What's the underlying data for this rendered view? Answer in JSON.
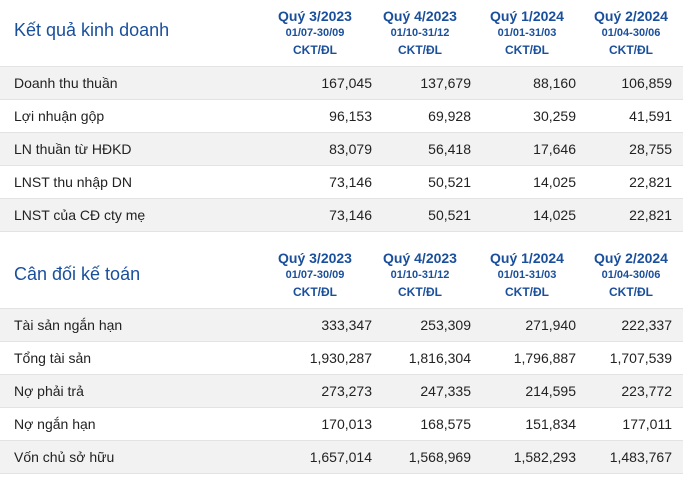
{
  "columns": [
    {
      "quarter": "Quý 3/2023",
      "range": "01/07-30/09",
      "unit": "CKT/ĐL"
    },
    {
      "quarter": "Quý 4/2023",
      "range": "01/10-31/12",
      "unit": "CKT/ĐL"
    },
    {
      "quarter": "Quý 1/2024",
      "range": "01/01-31/03",
      "unit": "CKT/ĐL"
    },
    {
      "quarter": "Quý 2/2024",
      "range": "01/04-30/06",
      "unit": "CKT/ĐL"
    }
  ],
  "business": {
    "title": "Kết quả kinh doanh",
    "rows": [
      {
        "label": "Doanh thu thuần",
        "values": [
          "167,045",
          "137,679",
          "88,160",
          "106,859"
        ]
      },
      {
        "label": "Lợi nhuận gộp",
        "values": [
          "96,153",
          "69,928",
          "30,259",
          "41,591"
        ]
      },
      {
        "label": "LN thuần từ HĐKD",
        "values": [
          "83,079",
          "56,418",
          "17,646",
          "28,755"
        ]
      },
      {
        "label": "LNST thu nhập DN",
        "values": [
          "73,146",
          "50,521",
          "14,025",
          "22,821"
        ]
      },
      {
        "label": "LNST của CĐ cty mẹ",
        "values": [
          "73,146",
          "50,521",
          "14,025",
          "22,821"
        ]
      }
    ]
  },
  "balance": {
    "title": "Cân đối kế toán",
    "rows": [
      {
        "label": "Tài sản ngắn hạn",
        "values": [
          "333,347",
          "253,309",
          "271,940",
          "222,337"
        ]
      },
      {
        "label": "Tổng tài sản",
        "values": [
          "1,930,287",
          "1,816,304",
          "1,796,887",
          "1,707,539"
        ]
      },
      {
        "label": "Nợ phải trả",
        "values": [
          "273,273",
          "247,335",
          "214,595",
          "223,772"
        ]
      },
      {
        "label": "Nợ ngắn hạn",
        "values": [
          "170,013",
          "168,575",
          "151,834",
          "177,011"
        ]
      },
      {
        "label": "Vốn chủ sở hữu",
        "values": [
          "1,657,014",
          "1,568,969",
          "1,582,293",
          "1,483,767"
        ]
      }
    ]
  }
}
